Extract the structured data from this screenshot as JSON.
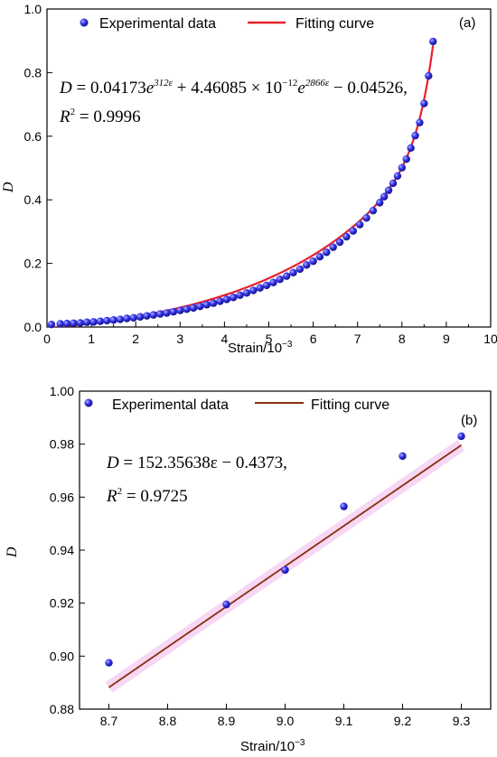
{
  "chart_data": [
    {
      "type": "scatter",
      "panel_label": "(a)",
      "xlabel": "Strain/10",
      "xlabel_exp": "−3",
      "ylabel": "D",
      "xlim": [
        0,
        10
      ],
      "ylim": [
        0,
        1.0
      ],
      "x_ticks": [
        "0",
        "1",
        "2",
        "3",
        "4",
        "5",
        "6",
        "7",
        "8",
        "9",
        "10"
      ],
      "y_ticks": [
        "0.0",
        "0.2",
        "0.4",
        "0.6",
        "0.8",
        "1.0"
      ],
      "legend": [
        "Experimental data",
        "Fitting curve"
      ],
      "equation": {
        "prefix": "D",
        "part1": " = 0.04173",
        "e1": "e",
        "exp1": "312ε",
        "part2": " + 4.46085 × 10",
        "exp10": "−12",
        "e2": "e",
        "exp2": "2866ε",
        "part3": " − 0.04526,",
        "r2_label": "R",
        "r2_exp": "2",
        "r2_value": " = 0.9996"
      },
      "fit": {
        "a": 0.04173,
        "b": 0.312,
        "c": 4.46085e-12,
        "d": 2.866,
        "k": -0.04526
      },
      "series": [
        {
          "name": "Experimental data",
          "x": [
            0.1,
            0.3,
            0.45,
            0.6,
            0.75,
            0.9,
            1.05,
            1.2,
            1.35,
            1.5,
            1.65,
            1.8,
            1.95,
            2.1,
            2.25,
            2.4,
            2.55,
            2.7,
            2.85,
            3.0,
            3.15,
            3.3,
            3.45,
            3.6,
            3.75,
            3.9,
            4.05,
            4.2,
            4.35,
            4.5,
            4.65,
            4.8,
            4.95,
            5.1,
            5.25,
            5.4,
            5.55,
            5.7,
            5.85,
            6.0,
            6.15,
            6.3,
            6.45,
            6.6,
            6.75,
            6.9,
            7.05,
            7.2,
            7.35,
            7.5,
            7.6,
            7.7,
            7.8,
            7.9,
            8.0,
            8.1,
            8.2,
            8.3,
            8.4,
            8.5,
            8.6,
            8.7
          ],
          "y": [
            0.008,
            0.01,
            0.011,
            0.012,
            0.013,
            0.015,
            0.016,
            0.018,
            0.02,
            0.022,
            0.024,
            0.027,
            0.029,
            0.032,
            0.035,
            0.038,
            0.041,
            0.044,
            0.048,
            0.052,
            0.056,
            0.06,
            0.065,
            0.07,
            0.075,
            0.081,
            0.087,
            0.093,
            0.1,
            0.107,
            0.115,
            0.123,
            0.131,
            0.14,
            0.15,
            0.16,
            0.171,
            0.182,
            0.195,
            0.207,
            0.221,
            0.235,
            0.251,
            0.267,
            0.284,
            0.302,
            0.322,
            0.343,
            0.366,
            0.391,
            0.41,
            0.43,
            0.452,
            0.475,
            0.501,
            0.528,
            0.563,
            0.602,
            0.643,
            0.703,
            0.79,
            0.898
          ]
        },
        {
          "name": "Fitting curve",
          "x_range": [
            0.0,
            8.7
          ]
        }
      ]
    },
    {
      "type": "scatter",
      "panel_label": "(b)",
      "xlabel": "Strain/10",
      "xlabel_exp": "−3",
      "ylabel": "D",
      "xlim": [
        8.65,
        9.35
      ],
      "ylim": [
        0.88,
        1.0
      ],
      "x_ticks": [
        "8.7",
        "8.8",
        "8.9",
        "9.0",
        "9.1",
        "9.2",
        "9.3"
      ],
      "y_ticks": [
        "0.88",
        "0.90",
        "0.92",
        "0.94",
        "0.96",
        "0.98",
        "1.00"
      ],
      "legend": [
        "Experimental data",
        "Fitting curve"
      ],
      "equation": {
        "line1_prefix": "D",
        "line1": " = 152.35638ε − 0.4373,",
        "r2_label": "R",
        "r2_exp": "2",
        "r2_value": " = 0.9725"
      },
      "fit": {
        "slope": 0.15235638,
        "intercept": -0.4373
      },
      "series": [
        {
          "name": "Experimental data",
          "x": [
            8.7,
            8.9,
            9.0,
            9.1,
            9.2,
            9.3
          ],
          "y": [
            0.8975,
            0.9195,
            0.9325,
            0.9565,
            0.9755,
            0.983
          ]
        },
        {
          "name": "Fitting curve",
          "x_range": [
            8.7,
            9.3
          ]
        }
      ]
    }
  ],
  "colors": {
    "marker": "#1f1fd6",
    "fit_a": "#e8202a",
    "fit_b": "#8b2d0c"
  }
}
